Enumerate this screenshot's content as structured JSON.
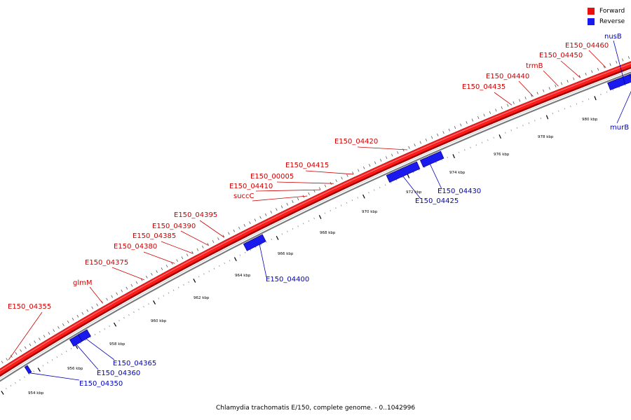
{
  "title": "Chlamydia trachomatis E/150, complete genome. - 0..1042996",
  "legend": {
    "forward_label": "Forward",
    "reverse_label": "Reverse",
    "forward_color": "#e81010",
    "reverse_color": "#1a1aee"
  },
  "colors": {
    "forward_label": "#cc0000",
    "reverse_label": "#0000bb",
    "backbone": "#ff1a1a",
    "backbone_dark": "#a00000",
    "reverse_strand": "#777777"
  },
  "axis": {
    "ticks": [
      "954 kbp",
      "956 kbp",
      "958 kbp",
      "960 kbp",
      "962 kbp",
      "964 kbp",
      "966 kbp",
      "968 kbp",
      "970 kbp",
      "972 kbp",
      "974 kbp",
      "976 kbp",
      "978 kbp",
      "980 kbp"
    ]
  },
  "forward_genes": [
    "E150_04355",
    "glmM",
    "E150_04375",
    "E150_04380",
    "E150_04385",
    "E150_04390",
    "E150_04395",
    "succC",
    "E150_04410",
    "E150_00005",
    "E150_04415",
    "E150_04420",
    "E150_04435",
    "E150_04440",
    "trmB",
    "E150_04450",
    "E150_04460"
  ],
  "reverse_genes": [
    "E150_04350",
    "E150_04360",
    "E150_04365",
    "E150_04400",
    "E150_04425",
    "E150_04430",
    "nusB",
    "murB"
  ]
}
